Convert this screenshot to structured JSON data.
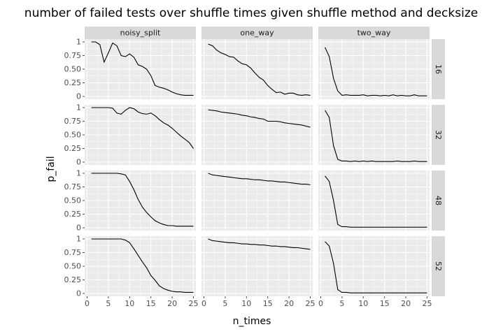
{
  "chart_data": {
    "type": "line",
    "title": "number of failed tests over shuffle times given shuffle method and decksize",
    "xlabel": "n_times",
    "ylabel": "p_fail",
    "xlim": [
      0,
      25
    ],
    "ylim": [
      0,
      1
    ],
    "x_ticks": [
      "0",
      "5",
      "10",
      "15",
      "20",
      "25"
    ],
    "y_ticks": [
      "0",
      "0.25",
      "0.50",
      "0.75",
      "1"
    ],
    "grid": true,
    "columns": [
      "noisy_split",
      "one_way",
      "two_way"
    ],
    "rows": [
      "16",
      "32",
      "48",
      "52"
    ],
    "x": [
      1,
      2,
      3,
      4,
      5,
      6,
      7,
      8,
      9,
      10,
      11,
      12,
      13,
      14,
      15,
      16,
      17,
      18,
      19,
      20,
      21,
      22,
      23,
      24,
      25
    ],
    "panels": [
      {
        "column": "noisy_split",
        "row": "16",
        "values": [
          1,
          1,
          0.95,
          0.63,
          0.8,
          0.98,
          0.93,
          0.75,
          0.73,
          0.78,
          0.72,
          0.58,
          0.55,
          0.5,
          0.38,
          0.2,
          0.17,
          0.15,
          0.12,
          0.08,
          0.05,
          0.03,
          0.02,
          0.02,
          0.02
        ]
      },
      {
        "column": "one_way",
        "row": "16",
        "values": [
          0.96,
          0.93,
          0.85,
          0.8,
          0.77,
          0.73,
          0.72,
          0.65,
          0.6,
          0.58,
          0.52,
          0.43,
          0.35,
          0.3,
          0.2,
          0.13,
          0.07,
          0.08,
          0.04,
          0.06,
          0.06,
          0.03,
          0.02,
          0.03,
          0.02
        ]
      },
      {
        "column": "two_way",
        "row": "16",
        "values": [
          0.9,
          0.73,
          0.33,
          0.1,
          0.02,
          0.03,
          0.02,
          0.02,
          0.02,
          0.03,
          0.01,
          0.02,
          0.02,
          0.01,
          0.02,
          0.01,
          0.03,
          0.01,
          0.02,
          0.01,
          0.01,
          0.03,
          0.01,
          0.01,
          0.01
        ]
      },
      {
        "column": "noisy_split",
        "row": "32",
        "values": [
          1,
          1,
          1,
          1,
          1,
          0.99,
          0.9,
          0.88,
          0.95,
          1,
          0.98,
          0.92,
          0.89,
          0.88,
          0.9,
          0.85,
          0.78,
          0.72,
          0.68,
          0.62,
          0.55,
          0.48,
          0.42,
          0.36,
          0.25
        ]
      },
      {
        "column": "one_way",
        "row": "32",
        "values": [
          0.96,
          0.95,
          0.94,
          0.92,
          0.91,
          0.9,
          0.89,
          0.88,
          0.86,
          0.85,
          0.83,
          0.82,
          0.8,
          0.79,
          0.75,
          0.75,
          0.75,
          0.74,
          0.72,
          0.71,
          0.7,
          0.69,
          0.68,
          0.66,
          0.64
        ]
      },
      {
        "column": "two_way",
        "row": "32",
        "values": [
          0.95,
          0.82,
          0.3,
          0.05,
          0.02,
          0.02,
          0.01,
          0.02,
          0.01,
          0.02,
          0.01,
          0.02,
          0.01,
          0.01,
          0.01,
          0.01,
          0.01,
          0.02,
          0.01,
          0.01,
          0.01,
          0.02,
          0.01,
          0.01,
          0.01
        ]
      },
      {
        "column": "noisy_split",
        "row": "48",
        "values": [
          1,
          1,
          1,
          1,
          1,
          1,
          1,
          0.99,
          0.97,
          0.85,
          0.7,
          0.52,
          0.38,
          0.28,
          0.2,
          0.13,
          0.09,
          0.06,
          0.04,
          0.04,
          0.03,
          0.03,
          0.03,
          0.03,
          0.03
        ]
      },
      {
        "column": "one_way",
        "row": "48",
        "values": [
          1,
          0.97,
          0.96,
          0.95,
          0.94,
          0.93,
          0.92,
          0.91,
          0.9,
          0.9,
          0.89,
          0.88,
          0.88,
          0.87,
          0.86,
          0.86,
          0.85,
          0.84,
          0.84,
          0.83,
          0.82,
          0.81,
          0.8,
          0.8,
          0.79
        ]
      },
      {
        "column": "two_way",
        "row": "48",
        "values": [
          0.95,
          0.85,
          0.5,
          0.06,
          0.02,
          0.02,
          0.01,
          0.01,
          0.01,
          0.01,
          0.01,
          0.01,
          0.01,
          0.01,
          0.01,
          0.01,
          0.01,
          0.01,
          0.01,
          0.01,
          0.01,
          0.01,
          0.01,
          0.01,
          0.01
        ]
      },
      {
        "column": "noisy_split",
        "row": "52",
        "values": [
          1,
          1,
          1,
          1,
          1,
          1,
          1,
          1,
          0.98,
          0.93,
          0.82,
          0.7,
          0.58,
          0.47,
          0.33,
          0.24,
          0.14,
          0.09,
          0.06,
          0.04,
          0.03,
          0.03,
          0.02,
          0.02,
          0.02
        ]
      },
      {
        "column": "one_way",
        "row": "52",
        "values": [
          1,
          0.97,
          0.96,
          0.95,
          0.94,
          0.93,
          0.93,
          0.92,
          0.91,
          0.91,
          0.9,
          0.9,
          0.89,
          0.89,
          0.88,
          0.87,
          0.87,
          0.86,
          0.86,
          0.85,
          0.84,
          0.84,
          0.83,
          0.82,
          0.81
        ]
      },
      {
        "column": "two_way",
        "row": "52",
        "values": [
          0.95,
          0.87,
          0.55,
          0.07,
          0.02,
          0.02,
          0.01,
          0.01,
          0.01,
          0.01,
          0.01,
          0.01,
          0.01,
          0.01,
          0.01,
          0.01,
          0.01,
          0.01,
          0.01,
          0.01,
          0.01,
          0.01,
          0.01,
          0.01,
          0.01
        ]
      }
    ]
  }
}
